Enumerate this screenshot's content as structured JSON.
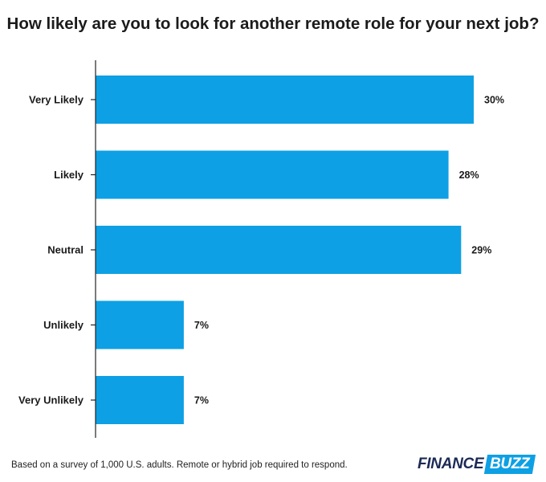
{
  "chart_data": {
    "type": "bar",
    "orientation": "horizontal",
    "title": "How likely are you to look for another remote role for your next job?",
    "categories": [
      "Very Likely",
      "Likely",
      "Neutral",
      "Unlikely",
      "Very Unlikely"
    ],
    "values": [
      30,
      28,
      29,
      7,
      7
    ],
    "value_labels": [
      "30%",
      "28%",
      "29%",
      "7%",
      "7%"
    ],
    "unit": "%",
    "xlim": [
      0,
      30
    ],
    "grid": false,
    "bar_color": "#0ea0e4"
  },
  "footnote": "Based on a survey of 1,000 U.S. adults. Remote or hybrid job required to respond.",
  "logo": {
    "part1": "FINANCE",
    "part2": "BUZZ"
  },
  "colors": {
    "bar": "#0ea0e4",
    "logo_dark": "#1b2a55",
    "logo_accent": "#0ea0e4"
  }
}
